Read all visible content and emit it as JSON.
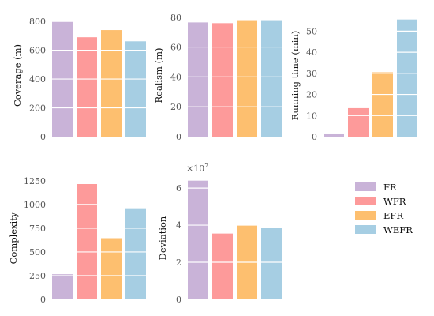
{
  "chart_data": [
    {
      "type": "bar",
      "categories": [
        "FR",
        "WFR",
        "EFR",
        "WEFR"
      ],
      "values": [
        800,
        690,
        740,
        662
      ],
      "ylabel": "Coverage (m)",
      "ylim": [
        0,
        850
      ],
      "yticks": [
        "0",
        "200",
        "400",
        "600",
        "800"
      ],
      "grid": "horizontal white lines"
    },
    {
      "type": "bar",
      "categories": [
        "FR",
        "WFR",
        "EFR",
        "WEFR"
      ],
      "values": [
        76.5,
        76.0,
        78.0,
        78.0
      ],
      "ylabel": "Realism (m)",
      "ylim": [
        0,
        82
      ],
      "yticks": [
        "0",
        "20",
        "40",
        "60",
        "80"
      ],
      "grid": "horizontal white lines"
    },
    {
      "type": "bar",
      "categories": [
        "FR",
        "WFR",
        "EFR",
        "WEFR"
      ],
      "values": [
        1.5,
        13.5,
        30.5,
        55.5
      ],
      "ylabel": "Running time (min)",
      "ylim": [
        0,
        58
      ],
      "yticks": [
        "0",
        "10",
        "20",
        "30",
        "40",
        "50"
      ],
      "grid": "horizontal white lines"
    },
    {
      "type": "bar",
      "categories": [
        "FR",
        "WFR",
        "EFR",
        "WEFR"
      ],
      "values": [
        265,
        1215,
        645,
        960
      ],
      "ylabel": "Complexity",
      "ylim": [
        0,
        1290
      ],
      "yticks": [
        "0",
        "250",
        "500",
        "750",
        "1000",
        "1250"
      ],
      "grid": "horizontal white lines"
    },
    {
      "type": "bar",
      "categories": [
        "FR",
        "WFR",
        "EFR",
        "WEFR"
      ],
      "values": [
        6.4,
        3.55,
        4.0,
        3.85
      ],
      "ylabel": "Deviation",
      "multiplier": "×10",
      "multiplier_exp": "7",
      "ylim": [
        0,
        6.6
      ],
      "yticks": [
        "0",
        "2",
        "4",
        "6"
      ],
      "grid": "horizontal white lines"
    }
  ],
  "legend": {
    "placement": "right",
    "entries": [
      "FR",
      "WFR",
      "EFR",
      "WEFR"
    ]
  },
  "colors": {
    "FR": "#c9b3d8",
    "WFR": "#fd9a9a",
    "EFR": "#fdbf6f",
    "WEFR": "#a6cee3",
    "axis_text": "#555555",
    "grid": "#ffffff"
  }
}
